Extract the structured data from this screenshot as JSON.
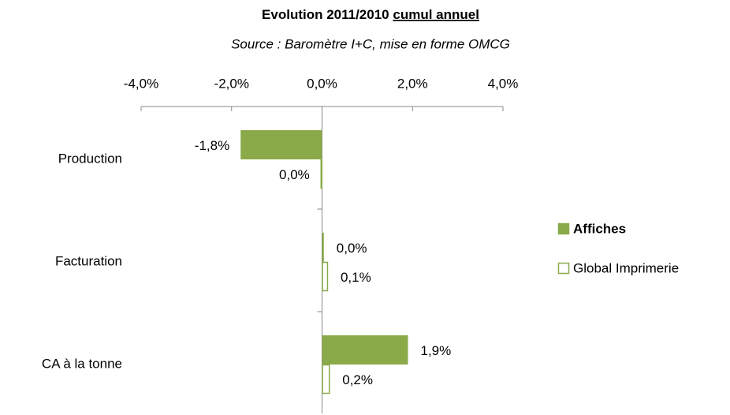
{
  "chart_data": {
    "type": "hbar",
    "title": [
      "Evolution 2011/2010",
      "cumul annuel"
    ],
    "subtitle": "Source : Baromètre  I+C, mise en forme OMCG",
    "categories": [
      "Production",
      "Facturation",
      "CA à la tonne"
    ],
    "series": [
      {
        "name": "Affiches",
        "color": "#8aaa4a",
        "fill": true,
        "values": [
          -1.8,
          0.04,
          1.9
        ],
        "value_labels": [
          "-1,8%",
          "0,0%",
          "1,9%"
        ]
      },
      {
        "name": "Global Imprimerie",
        "color": "#8aaa4a",
        "fill": false,
        "values": [
          -0.03,
          0.13,
          0.17
        ],
        "value_labels": [
          "0,0%",
          "0,1%",
          "0,2%"
        ]
      }
    ],
    "xlim": [
      -4,
      4
    ],
    "xticks": [
      {
        "value": -4,
        "label": "-4,0%"
      },
      {
        "value": -2,
        "label": "-2,0%"
      },
      {
        "value": 0,
        "label": "0,0%"
      },
      {
        "value": 2,
        "label": "2,0%"
      },
      {
        "value": 4,
        "label": "4,0%"
      }
    ],
    "legend": "right"
  }
}
